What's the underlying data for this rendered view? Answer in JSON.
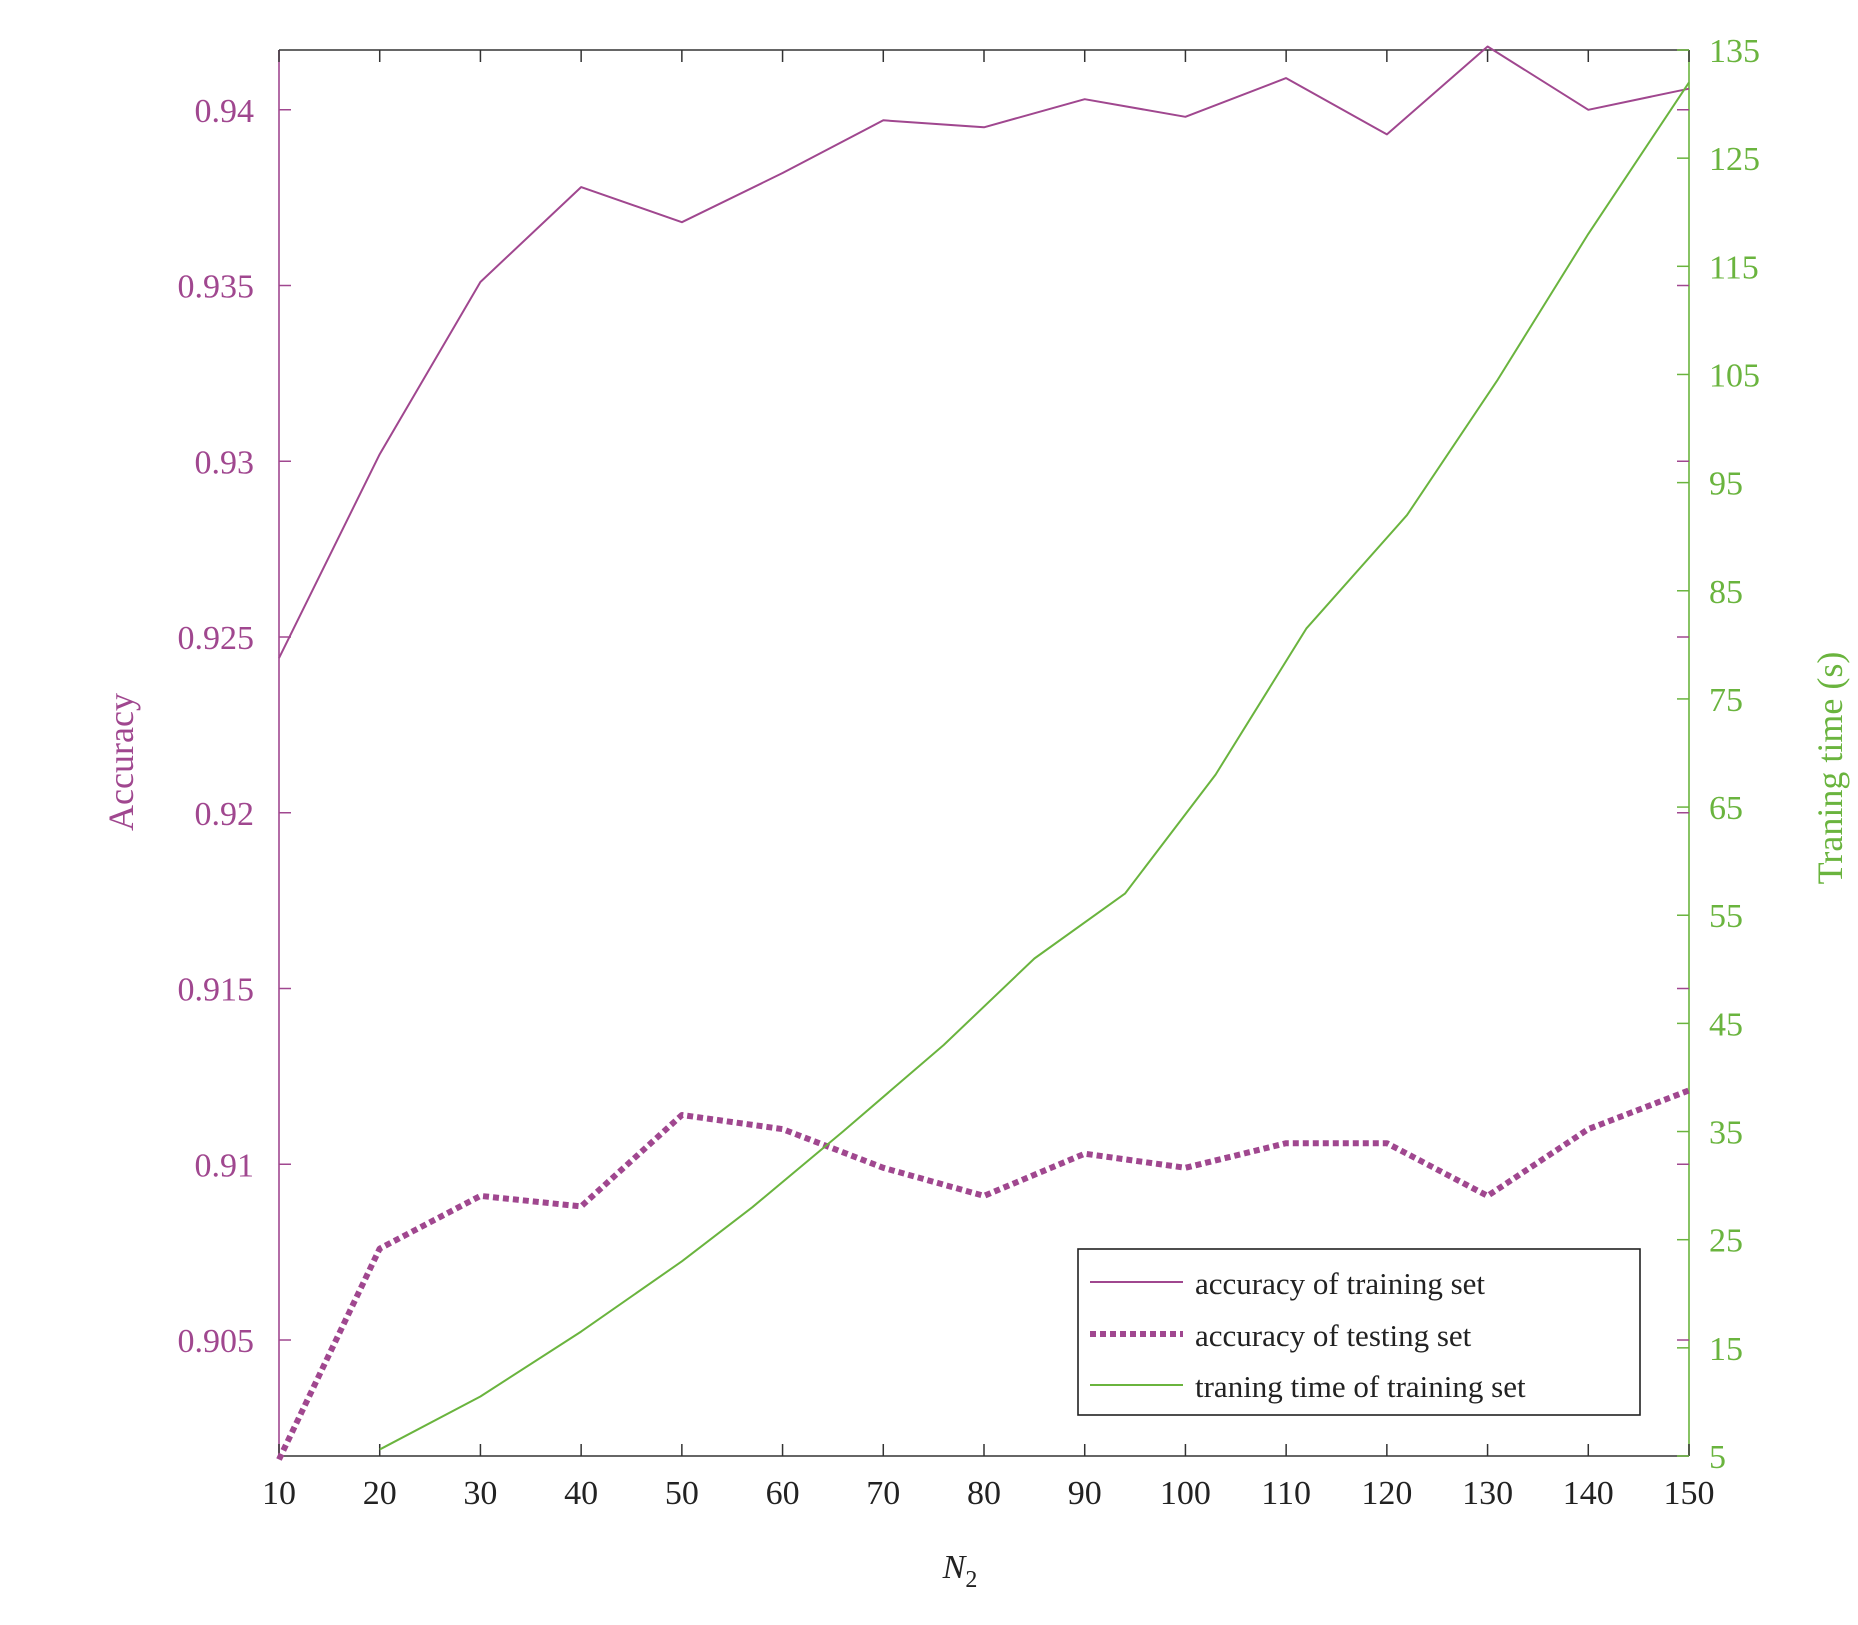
{
  "chart_data": {
    "type": "line",
    "xlabel": "N",
    "xlabel_subscript": "2",
    "ylabel_left": "Accuracy",
    "ylabel_right": "Traning time (s)",
    "x_ticks": [
      10,
      20,
      30,
      40,
      50,
      60,
      70,
      80,
      90,
      100,
      110,
      120,
      130,
      140,
      150
    ],
    "xlim": [
      10,
      150
    ],
    "y_left": {
      "lim": [
        0.9017,
        0.9417
      ],
      "ticks": [
        0.905,
        0.91,
        0.915,
        0.92,
        0.925,
        0.93,
        0.935,
        0.94
      ],
      "tick_labels": [
        "0.905",
        "0.91",
        "0.915",
        "0.92",
        "0.925",
        "0.93",
        "0.935",
        "0.94"
      ],
      "color": "#a0478f"
    },
    "y_right": {
      "lim": [
        5,
        135
      ],
      "ticks": [
        5,
        15,
        25,
        35,
        45,
        55,
        65,
        75,
        85,
        95,
        105,
        115,
        125,
        135
      ],
      "tick_labels": [
        "5",
        "15",
        "25",
        "35",
        "45",
        "55",
        "65",
        "75",
        "85",
        "95",
        "105",
        "115",
        "125",
        "135"
      ],
      "color": "#6ab43e"
    },
    "legend_position": "bottom-right",
    "series": [
      {
        "name": "accuracy of training set",
        "axis": "left",
        "style": "solid",
        "color": "#a0478f",
        "x": [
          10,
          20,
          30,
          40,
          50,
          60,
          70,
          80,
          90,
          100,
          110,
          120,
          130,
          140,
          150
        ],
        "y": [
          0.9244,
          0.9302,
          0.9351,
          0.9378,
          0.9368,
          0.9382,
          0.9397,
          0.9395,
          0.9403,
          0.9398,
          0.9409,
          0.9393,
          0.9418,
          0.94,
          0.9406
        ]
      },
      {
        "name": "accuracy of testing set",
        "axis": "left",
        "style": "dotted",
        "color": "#a0478f",
        "x": [
          10,
          20,
          30,
          40,
          50,
          60,
          70,
          80,
          90,
          100,
          110,
          120,
          130,
          140,
          150
        ],
        "y": [
          0.9016,
          0.9076,
          0.9091,
          0.9088,
          0.9114,
          0.911,
          0.9099,
          0.9091,
          0.9103,
          0.9099,
          0.9106,
          0.9106,
          0.9091,
          0.911,
          0.9121
        ]
      },
      {
        "name": "traning time of training set",
        "axis": "right",
        "style": "solid",
        "color": "#6ab43e",
        "x": [
          20,
          30,
          40,
          50,
          57,
          66,
          76,
          85,
          94,
          103,
          112,
          122,
          131,
          140,
          150
        ],
        "y": [
          5.6,
          10.5,
          16.5,
          23,
          28,
          35,
          43,
          51,
          57,
          68,
          81.5,
          92,
          104.5,
          118,
          132
        ]
      }
    ]
  }
}
